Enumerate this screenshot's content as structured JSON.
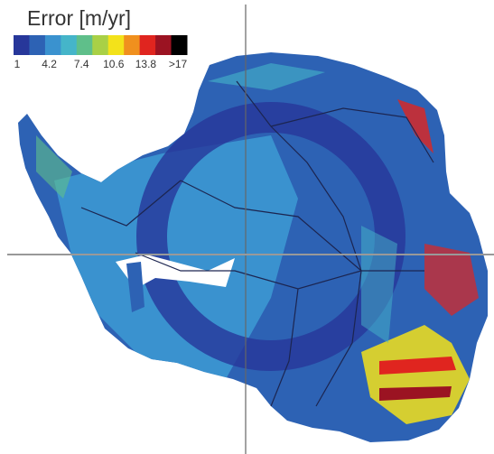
{
  "legend": {
    "title": "Error [m/yr]",
    "labels": [
      "1",
      "4.2",
      "7.4",
      "10.6",
      "13.8",
      ">17"
    ],
    "colors": [
      "#27379a",
      "#2d62b4",
      "#3a92cf",
      "#45b5c9",
      "#5fbf8a",
      "#a9d046",
      "#f3e21a",
      "#f0901e",
      "#e0251f",
      "#9b1322",
      "#000000"
    ]
  }
}
